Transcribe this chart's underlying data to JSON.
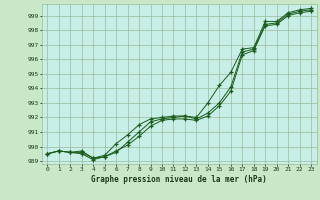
{
  "title": "Graphe pression niveau de la mer (hPa)",
  "x_labels": [
    "0",
    "1",
    "2",
    "3",
    "4",
    "5",
    "6",
    "7",
    "8",
    "9",
    "10",
    "11",
    "12",
    "13",
    "14",
    "15",
    "16",
    "17",
    "18",
    "19",
    "20",
    "21",
    "22",
    "23"
  ],
  "ylim": [
    988.8,
    999.8
  ],
  "yticks": [
    989,
    990,
    991,
    992,
    993,
    994,
    995,
    996,
    997,
    998,
    999
  ],
  "background_color": "#c8e8c8",
  "plot_bg_color": "#c8eee8",
  "grid_color": "#99bb99",
  "line_color": "#1a5c1a",
  "series": [
    [
      989.5,
      989.7,
      989.6,
      989.6,
      989.2,
      989.3,
      989.6,
      990.3,
      991.0,
      991.7,
      991.9,
      992.0,
      992.1,
      991.9,
      992.3,
      993.0,
      994.1,
      996.5,
      996.7,
      998.4,
      998.5,
      999.1,
      999.3,
      999.4
    ],
    [
      989.5,
      989.7,
      989.6,
      989.7,
      989.2,
      989.4,
      990.2,
      990.8,
      991.5,
      991.9,
      992.0,
      992.1,
      992.1,
      992.0,
      993.0,
      994.2,
      995.1,
      996.7,
      996.8,
      998.6,
      998.6,
      999.2,
      999.4,
      999.5
    ],
    [
      989.5,
      989.7,
      989.6,
      989.5,
      989.1,
      989.3,
      989.7,
      990.1,
      990.7,
      991.4,
      991.8,
      991.9,
      991.9,
      991.8,
      992.1,
      992.8,
      993.8,
      996.3,
      996.6,
      998.3,
      998.4,
      999.0,
      999.2,
      999.3
    ]
  ]
}
